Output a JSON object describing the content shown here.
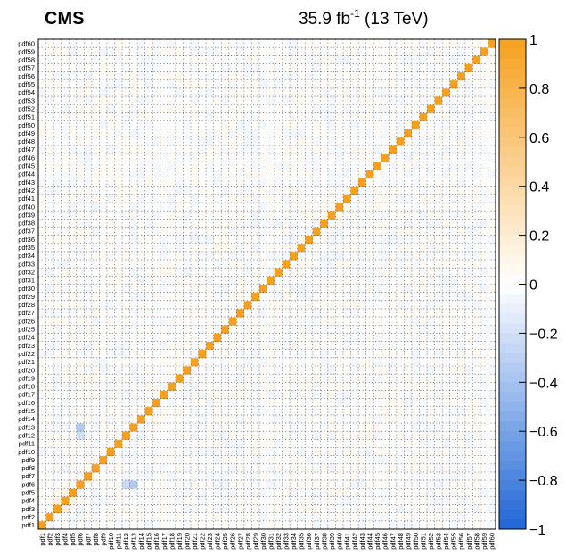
{
  "header": {
    "experiment": "CMS",
    "lumi_value": "35.9 fb",
    "lumi_exp": "-1",
    "energy": " (13 TeV)"
  },
  "chart_data": {
    "type": "heatmap",
    "title": "",
    "labels": [
      "pdf1",
      "pdf2",
      "pdf3",
      "pdf4",
      "pdf5",
      "pdf6",
      "pdf7",
      "pdf8",
      "pdf9",
      "pdf10",
      "pdf11",
      "pdf12",
      "pdf13",
      "pdf14",
      "pdf15",
      "pdf16",
      "pdf17",
      "pdf18",
      "pdf19",
      "pdf20",
      "pdf21",
      "pdf22",
      "pdf23",
      "pdf24",
      "pdf25",
      "pdf26",
      "pdf27",
      "pdf28",
      "pdf29",
      "pdf30",
      "pdf31",
      "pdf32",
      "pdf33",
      "pdf34",
      "pdf35",
      "pdf36",
      "pdf37",
      "pdf38",
      "pdf39",
      "pdf40",
      "pdf41",
      "pdf42",
      "pdf43",
      "pdf44",
      "pdf45",
      "pdf46",
      "pdf47",
      "pdf48",
      "pdf49",
      "pdf50",
      "pdf51",
      "pdf52",
      "pdf53",
      "pdf54",
      "pdf55",
      "pdf56",
      "pdf57",
      "pdf58",
      "pdf59",
      "pdf60"
    ],
    "diagonal_value": 1,
    "zlim": [
      -1,
      1
    ],
    "colorbar_ticks": [
      -1,
      -0.8,
      -0.6,
      -0.4,
      -0.2,
      0,
      0.2,
      0.4,
      0.6,
      0.8,
      1
    ],
    "colorbar_tick_labels": [
      "−1",
      "−0.8",
      "−0.6",
      "−0.4",
      "−0.2",
      "0",
      "0.2",
      "0.4",
      "0.6",
      "0.8",
      "1"
    ],
    "notable_off_diagonal": [
      {
        "row": "pdf13",
        "col": "pdf6",
        "value": -0.35
      },
      {
        "row": "pdf6",
        "col": "pdf13",
        "value": -0.35
      },
      {
        "row": "pdf6",
        "col": "pdf12",
        "value": -0.25
      },
      {
        "row": "pdf12",
        "col": "pdf6",
        "value": -0.2
      },
      {
        "row": "pdf4",
        "col": "pdf3",
        "value": 0.15
      },
      {
        "row": "pdf3",
        "col": "pdf4",
        "value": 0.15
      },
      {
        "row": "pdf5",
        "col": "pdf4",
        "value": 0.12
      },
      {
        "row": "pdf4",
        "col": "pdf5",
        "value": 0.12
      }
    ],
    "colors": {
      "positive": "#f7a01e",
      "negative": "#1f66d6",
      "zero": "#ffffff",
      "diagonal": "#f7a01e"
    },
    "grid": true
  }
}
